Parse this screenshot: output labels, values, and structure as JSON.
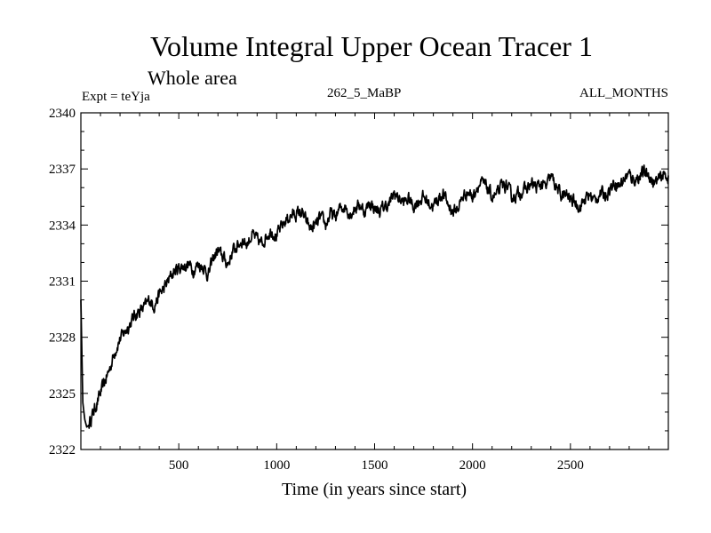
{
  "chart_data": {
    "type": "line",
    "title": "Volume Integral Upper Ocean Tracer 1",
    "subtitle": "Whole area",
    "experiment_label": "Expt = teYja",
    "run_label": "262_5_MaBP",
    "months_label": "ALL_MONTHS",
    "xlabel": "Time (in years since start)",
    "ylabel": "",
    "xlim": [
      0,
      3000
    ],
    "ylim": [
      2322,
      2340
    ],
    "x_ticks": [
      500,
      1000,
      1500,
      2000,
      2500
    ],
    "x_tick_labels": [
      "500",
      "1000",
      "1500",
      "2000",
      "2500"
    ],
    "y_ticks": [
      2322,
      2325,
      2328,
      2331,
      2334,
      2337,
      2340
    ],
    "y_tick_labels": [
      "2322",
      "2325",
      "2328",
      "2331",
      "2334",
      "2337",
      "2340"
    ],
    "grid": false,
    "line_color": "#000000",
    "series": [
      {
        "name": "Tracer 1",
        "x": [
          0,
          10,
          20,
          30,
          40,
          50,
          75,
          100,
          125,
          150,
          175,
          200,
          225,
          250,
          275,
          300,
          325,
          350,
          375,
          400,
          425,
          450,
          475,
          500,
          525,
          550,
          575,
          600,
          625,
          650,
          675,
          700,
          725,
          750,
          775,
          800,
          825,
          850,
          875,
          900,
          925,
          950,
          975,
          1000,
          1025,
          1050,
          1075,
          1100,
          1125,
          1150,
          1175,
          1200,
          1225,
          1250,
          1275,
          1300,
          1325,
          1350,
          1375,
          1400,
          1425,
          1450,
          1475,
          1500,
          1525,
          1550,
          1575,
          1600,
          1625,
          1650,
          1675,
          1700,
          1725,
          1750,
          1775,
          1800,
          1825,
          1850,
          1875,
          1900,
          1925,
          1950,
          1975,
          2000,
          2025,
          2050,
          2075,
          2100,
          2125,
          2150,
          2175,
          2200,
          2225,
          2250,
          2275,
          2300,
          2325,
          2350,
          2375,
          2400,
          2425,
          2450,
          2475,
          2500,
          2525,
          2550,
          2575,
          2600,
          2625,
          2650,
          2675,
          2700,
          2725,
          2750,
          2775,
          2800,
          2825,
          2850,
          2875,
          2900,
          2925,
          2950,
          2975,
          3000
        ],
        "values": [
          2330.0,
          2324.5,
          2323.6,
          2323.2,
          2323.3,
          2323.6,
          2324.3,
          2325.0,
          2325.7,
          2326.4,
          2327.3,
          2327.9,
          2328.3,
          2328.7,
          2329.2,
          2329.4,
          2329.6,
          2330.0,
          2329.7,
          2330.3,
          2330.6,
          2331.1,
          2331.5,
          2331.7,
          2331.8,
          2331.9,
          2331.6,
          2331.9,
          2331.8,
          2331.3,
          2332.2,
          2332.6,
          2332.3,
          2331.9,
          2332.6,
          2332.9,
          2333.2,
          2333.0,
          2333.5,
          2333.2,
          2333.0,
          2333.5,
          2333.7,
          2333.4,
          2333.9,
          2334.3,
          2334.5,
          2334.6,
          2334.7,
          2334.2,
          2333.8,
          2334.0,
          2334.4,
          2334.0,
          2334.6,
          2334.4,
          2334.9,
          2335.0,
          2334.6,
          2334.9,
          2335.1,
          2334.7,
          2335.2,
          2334.9,
          2334.7,
          2335.0,
          2335.1,
          2335.7,
          2335.4,
          2335.2,
          2335.4,
          2335.0,
          2335.3,
          2335.5,
          2335.2,
          2335.0,
          2335.4,
          2335.7,
          2335.1,
          2334.7,
          2334.9,
          2335.5,
          2335.8,
          2335.5,
          2336.1,
          2336.2,
          2336.0,
          2335.5,
          2335.6,
          2336.1,
          2336.1,
          2335.5,
          2335.6,
          2335.8,
          2335.9,
          2336.2,
          2336.0,
          2336.2,
          2336.0,
          2336.6,
          2336.1,
          2335.6,
          2335.6,
          2335.4,
          2335.2,
          2335.0,
          2335.4,
          2335.6,
          2335.3,
          2335.7,
          2335.6,
          2335.9,
          2336.3,
          2336.1,
          2336.5,
          2336.7,
          2336.4,
          2336.6,
          2336.8,
          2336.7,
          2336.2,
          2336.4,
          2336.7,
          2336.6
        ]
      }
    ]
  }
}
